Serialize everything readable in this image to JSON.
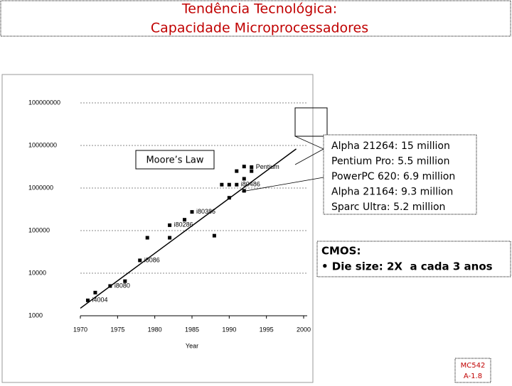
{
  "title": [
    "Tendência Tecnológica:",
    "Capacidade Microprocessadores"
  ],
  "chart_data": {
    "type": "scatter",
    "xlabel": "Year",
    "log_y": true,
    "grid": true,
    "color": "#000000",
    "x": [
      1971,
      1972,
      1974,
      1976,
      1978,
      1979,
      1982,
      1982,
      1984,
      1985,
      1988,
      1989,
      1990,
      1990,
      1991,
      1991,
      1992,
      1992,
      1992,
      1993,
      1993
    ],
    "values": [
      2300,
      3500,
      5000,
      6500,
      20000,
      68000,
      134000,
      68000,
      180000,
      275000,
      76000,
      1200000,
      1200000,
      590000,
      2500000,
      1200000,
      1650000,
      3200000,
      860000,
      3100000,
      2500000
    ],
    "point_labels": [
      "i4004",
      null,
      "i8080",
      null,
      "i8086",
      null,
      "i80286",
      null,
      null,
      "i80386",
      null,
      null,
      null,
      null,
      null,
      "i80486",
      null,
      null,
      null,
      "Pentium",
      null
    ],
    "trendline": {
      "label": "Moore’s Law",
      "x": [
        1970,
        1999
      ],
      "values": [
        1500,
        8300000
      ]
    },
    "xlim": [
      1970,
      2000
    ],
    "xticks": [
      1970,
      1975,
      1980,
      1985,
      1990,
      1995,
      2000
    ],
    "ylim": [
      1000,
      100000000
    ],
    "yticks": [
      1000,
      10000,
      100000,
      1000000,
      10000000,
      100000000
    ]
  },
  "callout": [
    "Alpha 21264: 15 million",
    "Pentium Pro: 5.5 million",
    "PowerPC 620: 6.9 million",
    "Alpha 21164: 9.3 million",
    "Sparc Ultra: 5.2 million"
  ],
  "cmos": {
    "heading": "CMOS:",
    "bullet": "• Die size: 2X  a cada 3 anos"
  },
  "footer": [
    "MC542",
    "A-1.8"
  ]
}
